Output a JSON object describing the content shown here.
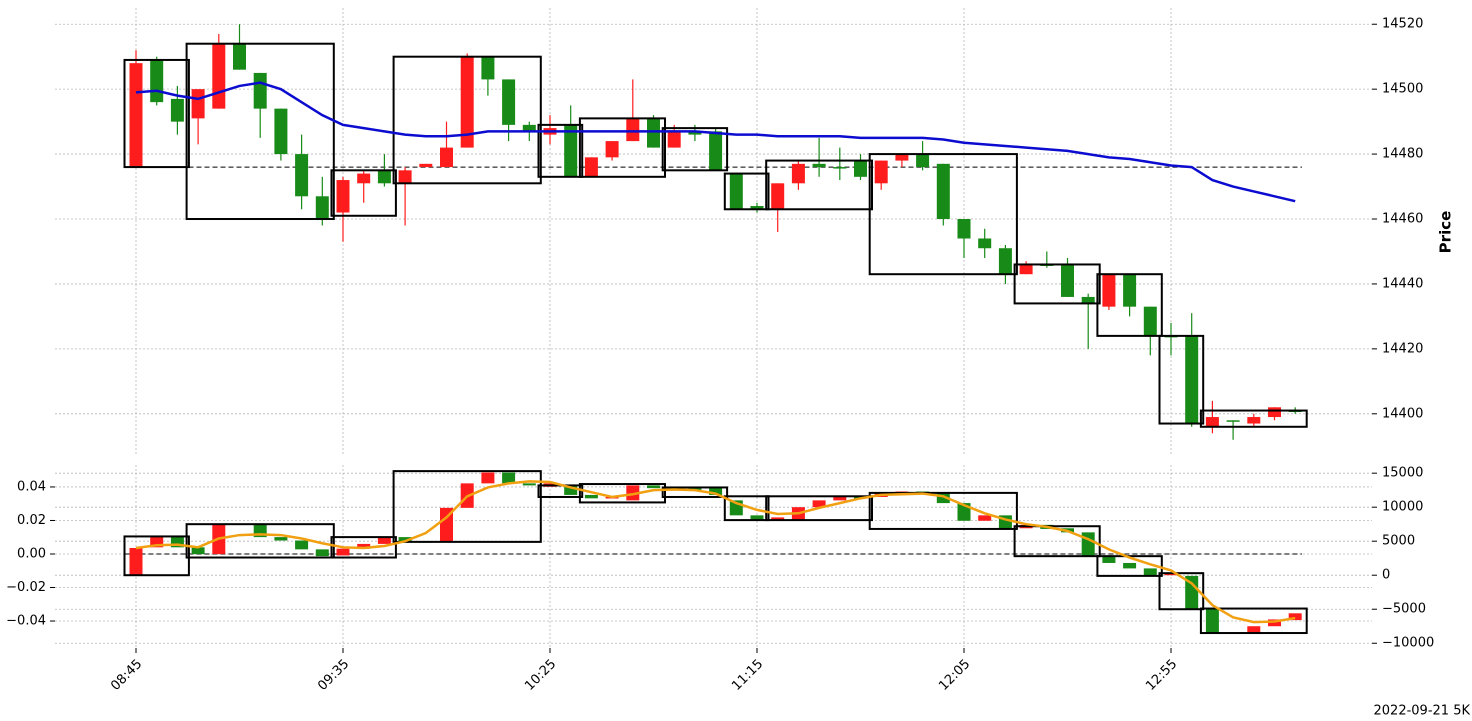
{
  "chart_data": [
    {
      "type": "candlestick",
      "ylabel": "Price",
      "ylim": [
        14387,
        14525
      ],
      "yticks": [
        14400,
        14420,
        14440,
        14460,
        14480,
        14500,
        14520
      ],
      "grid": true,
      "up_color": "#ff1c1c",
      "down_color": "#178a17",
      "open": [
        14476,
        14509,
        14497,
        14491,
        14494,
        14514,
        14505,
        14494,
        14480,
        14467,
        14462,
        14471,
        14475,
        14471,
        14476,
        14476,
        14482,
        14510,
        14503,
        14489,
        14486,
        14489,
        14473,
        14479,
        14484,
        14491,
        14482,
        14487,
        14487,
        14474,
        14464,
        14463,
        14471,
        14477,
        14476,
        14478,
        14471,
        14478,
        14480,
        14477,
        14460,
        14454,
        14451,
        14443,
        14446,
        14446,
        14436,
        14433,
        14443,
        14433,
        14424,
        14424,
        14396,
        14398,
        14397,
        14399,
        14401
      ],
      "high": [
        14512,
        14510,
        14501,
        14500,
        14517,
        14520,
        14505,
        14494,
        14486,
        14473,
        14473,
        14475,
        14480,
        14476,
        14477,
        14490,
        14511,
        14510,
        14503,
        14490,
        14492,
        14495,
        14479,
        14484,
        14503,
        14492,
        14489,
        14489,
        14488,
        14474,
        14465,
        14471,
        14478,
        14485,
        14482,
        14480,
        14478,
        14480,
        14484,
        14477,
        14460,
        14457,
        14452,
        14447,
        14450,
        14448,
        14437,
        14443,
        14443,
        14433,
        14428,
        14431,
        14404,
        14398,
        14400,
        14402,
        14402
      ],
      "low": [
        14476,
        14495,
        14486,
        14483,
        14494,
        14506,
        14485,
        14478,
        14463,
        14458,
        14453,
        14465,
        14470,
        14458,
        14476,
        14476,
        14482,
        14498,
        14484,
        14484,
        14483,
        14473,
        14473,
        14478,
        14484,
        14482,
        14482,
        14484,
        14475,
        14463,
        14462,
        14456,
        14469,
        14473,
        14472,
        14472,
        14469,
        14476,
        14475,
        14458,
        14448,
        14448,
        14440,
        14443,
        14445,
        14436,
        14420,
        14432,
        14430,
        14418,
        14418,
        14396,
        14394,
        14392,
        14396,
        14398,
        14400
      ],
      "close": [
        14508,
        14496,
        14490,
        14500,
        14514,
        14506,
        14494,
        14480,
        14467,
        14460,
        14472,
        14474,
        14471,
        14475,
        14477,
        14482,
        14510,
        14503,
        14489,
        14487,
        14488,
        14473,
        14479,
        14484,
        14491,
        14482,
        14487,
        14486,
        14475,
        14463,
        14463,
        14471,
        14477,
        14476,
        14476,
        14473,
        14478,
        14480,
        14476,
        14460,
        14454,
        14451,
        14443,
        14446,
        14446,
        14436,
        14434,
        14443,
        14433,
        14424,
        14424,
        14397,
        14399,
        14398,
        14399,
        14402,
        14401
      ],
      "lines": [
        {
          "color": "#0c0cd0",
          "values": [
            14499,
            14499.5,
            14498,
            14497,
            14499,
            14501,
            14502,
            14500,
            14496,
            14492,
            14489,
            14488,
            14487,
            14486,
            14485.5,
            14485.5,
            14486,
            14487,
            14487,
            14487,
            14487,
            14487,
            14487,
            14487,
            14487,
            14487,
            14487,
            14487,
            14486.5,
            14486,
            14486,
            14485.5,
            14485.5,
            14485.5,
            14485.5,
            14485,
            14485,
            14485,
            14485,
            14484.5,
            14483.5,
            14483,
            14482.5,
            14482,
            14481.5,
            14481,
            14480,
            14479,
            14478.5,
            14477.5,
            14476.5,
            14476,
            14472,
            14470,
            14468.5,
            14467,
            14465.5
          ]
        }
      ],
      "hline": {
        "value": 14476
      },
      "boxes": [
        {
          "from": 0,
          "to": 2,
          "low": 14476,
          "high": 14509
        },
        {
          "from": 3,
          "to": 9,
          "low": 14460,
          "high": 14514
        },
        {
          "from": 10,
          "to": 12,
          "low": 14461,
          "high": 14475
        },
        {
          "from": 13,
          "to": 19,
          "low": 14471,
          "high": 14510
        },
        {
          "from": 20,
          "to": 21,
          "low": 14473,
          "high": 14489
        },
        {
          "from": 22,
          "to": 25,
          "low": 14473,
          "high": 14491
        },
        {
          "from": 26,
          "to": 28,
          "low": 14475,
          "high": 14488
        },
        {
          "from": 29,
          "to": 30,
          "low": 14463,
          "high": 14474
        },
        {
          "from": 31,
          "to": 35,
          "low": 14463,
          "high": 14478
        },
        {
          "from": 36,
          "to": 42,
          "low": 14443,
          "high": 14480
        },
        {
          "from": 43,
          "to": 46,
          "low": 14434,
          "high": 14446
        },
        {
          "from": 47,
          "to": 49,
          "low": 14424,
          "high": 14443
        },
        {
          "from": 50,
          "to": 51,
          "low": 14397,
          "high": 14424
        },
        {
          "from": 52,
          "to": 56,
          "low": 14396,
          "high": 14401
        }
      ]
    },
    {
      "type": "candlestick",
      "categories": [
        "08:45",
        null,
        null,
        null,
        null,
        null,
        null,
        null,
        null,
        null,
        "09:35",
        null,
        null,
        null,
        null,
        null,
        null,
        null,
        null,
        null,
        "10:25",
        null,
        null,
        null,
        null,
        null,
        null,
        null,
        null,
        null,
        "11:15",
        null,
        null,
        null,
        null,
        null,
        null,
        null,
        null,
        null,
        "12:05",
        null,
        null,
        null,
        null,
        null,
        null,
        null,
        null,
        null,
        "12:55",
        null,
        null,
        null,
        null,
        null,
        null
      ],
      "ylim": [
        -10700,
        16200
      ],
      "yticks": [
        {
          "value": -10000,
          "label": "−10000"
        },
        {
          "value": -5000,
          "label": "−5000"
        },
        0,
        5000,
        10000,
        15000
      ],
      "y2lim": [
        -0.0561,
        0.0531
      ],
      "y2ticks": [
        {
          "value": -0.04,
          "label": "−0.04"
        },
        {
          "value": -0.02,
          "label": "−0.02"
        },
        {
          "value": 0,
          "label": "0.00"
        },
        0.02,
        0.04
      ],
      "grid": true,
      "up_color": "#ff1c1c",
      "down_color": "#178a17",
      "open": [
        0,
        4100,
        5600,
        4100,
        3100,
        7400,
        7500,
        5600,
        5100,
        3800,
        2900,
        3900,
        4600,
        5600,
        5000,
        5000,
        9900,
        13500,
        15100,
        13500,
        13000,
        13100,
        11800,
        11300,
        11000,
        13200,
        12900,
        12800,
        12900,
        11000,
        8800,
        8200,
        8200,
        10000,
        11000,
        11500,
        11500,
        12100,
        12300,
        12100,
        10600,
        8000,
        8800,
        6900,
        7400,
        6900,
        6300,
        2900,
        1800,
        1000,
        0,
        -100,
        -4900,
        -8500,
        -8500,
        -7500,
        -6600
      ],
      "close": [
        4000,
        5600,
        4100,
        3100,
        7400,
        7600,
        5600,
        5100,
        3800,
        2800,
        3900,
        4600,
        5600,
        5000,
        5000,
        9900,
        13500,
        15100,
        13500,
        13200,
        13500,
        11800,
        11300,
        11500,
        13200,
        12800,
        12600,
        12500,
        11800,
        8800,
        8200,
        8500,
        10000,
        11000,
        11500,
        11400,
        12100,
        12300,
        12200,
        10600,
        8000,
        8800,
        6900,
        7400,
        6800,
        6300,
        2900,
        1800,
        1000,
        0,
        300,
        -4900,
        -8500,
        -8400,
        -7500,
        -6500,
        -5600
      ],
      "lines": [
        {
          "color": "#f0a010",
          "values": [
            4000,
            4400,
            4500,
            4100,
            5400,
            5900,
            6000,
            5900,
            5400,
            4700,
            4100,
            4000,
            4300,
            5000,
            6200,
            8500,
            11600,
            12900,
            13500,
            13800,
            13700,
            12900,
            12200,
            11500,
            11900,
            12500,
            12600,
            12500,
            12000,
            10600,
            9600,
            9000,
            9100,
            9900,
            10600,
            11300,
            11800,
            11900,
            12000,
            11600,
            10300,
            9100,
            8200,
            7500,
            7100,
            6500,
            5300,
            3800,
            2600,
            1600,
            700,
            -1200,
            -4400,
            -6200,
            -6900,
            -6800,
            -6300
          ]
        }
      ],
      "hline": {
        "value": 0,
        "axis": "y2"
      },
      "boxes": [
        {
          "from": 0,
          "to": 2,
          "low": 0,
          "high": 5700
        },
        {
          "from": 3,
          "to": 9,
          "low": 2600,
          "high": 7500
        },
        {
          "from": 10,
          "to": 12,
          "low": 2600,
          "high": 5600
        },
        {
          "from": 13,
          "to": 19,
          "low": 4900,
          "high": 15300
        },
        {
          "from": 20,
          "to": 21,
          "low": 11500,
          "high": 13200
        },
        {
          "from": 22,
          "to": 25,
          "low": 10700,
          "high": 13400
        },
        {
          "from": 26,
          "to": 28,
          "low": 11500,
          "high": 12900
        },
        {
          "from": 29,
          "to": 30,
          "low": 8100,
          "high": 11600
        },
        {
          "from": 31,
          "to": 35,
          "low": 8100,
          "high": 11600
        },
        {
          "from": 36,
          "to": 42,
          "low": 6800,
          "high": 12100
        },
        {
          "from": 43,
          "to": 46,
          "low": 2800,
          "high": 7200
        },
        {
          "from": 47,
          "to": 49,
          "low": -100,
          "high": 2800
        },
        {
          "from": 50,
          "to": 51,
          "low": -5000,
          "high": 300
        },
        {
          "from": 52,
          "to": 56,
          "low": -8500,
          "high": -4900
        }
      ]
    }
  ],
  "footer": "2022-09-21 5K"
}
